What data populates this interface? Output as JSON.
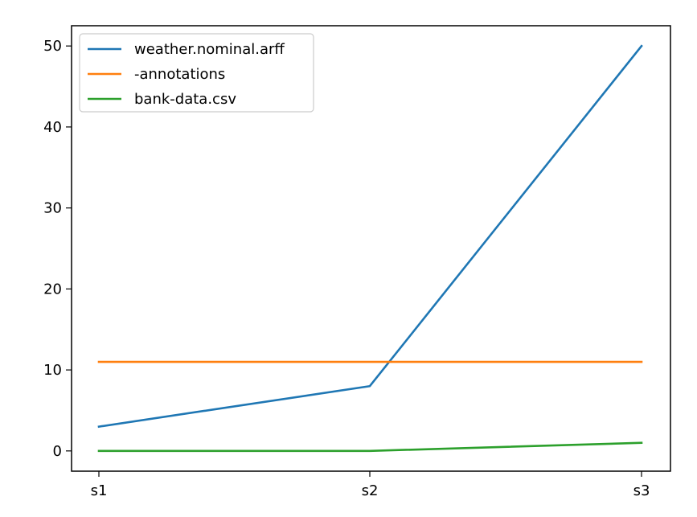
{
  "chart_data": {
    "type": "line",
    "title": "",
    "xlabel": "",
    "ylabel": "",
    "categories": [
      "s1",
      "s2",
      "s3"
    ],
    "ylim": [
      -2.5,
      52.5
    ],
    "yticks": [
      0,
      10,
      20,
      30,
      40,
      50
    ],
    "grid": false,
    "legend_position": "top-left",
    "series": [
      {
        "name": "weather.nominal.arff",
        "values": [
          3,
          8,
          50
        ],
        "color": "#1f77b4"
      },
      {
        "name": "-annotations",
        "values": [
          11,
          11,
          11
        ],
        "color": "#ff7f0e"
      },
      {
        "name": "bank-data.csv",
        "values": [
          0,
          0,
          1
        ],
        "color": "#2ca02c"
      }
    ]
  }
}
